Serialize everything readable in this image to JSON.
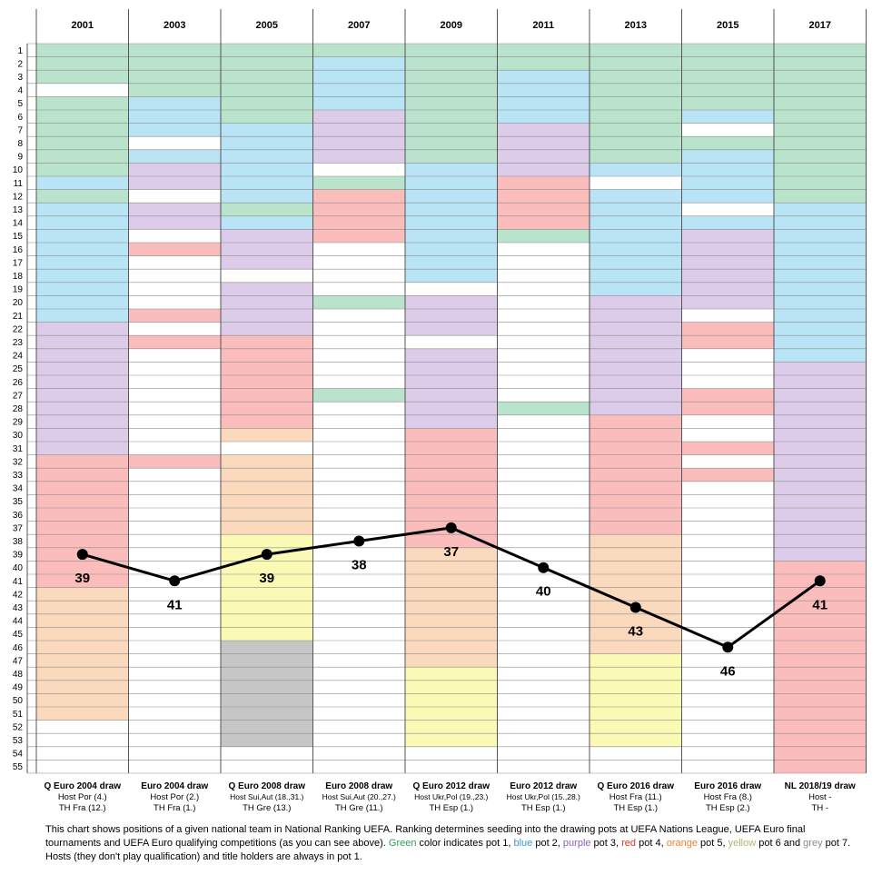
{
  "colors": {
    "pot1": "#b9e4cb",
    "pot2": "#b9e4f6",
    "pot3": "#dccbe9",
    "pot4": "#fbbcbc",
    "pot5": "#fbd9bd",
    "pot6": "#fafab4",
    "pot7": "#c6c6c6",
    "none": "#ffffff",
    "line": "#000000"
  },
  "chart_data": {
    "type": "line",
    "y_axis": {
      "min": 1,
      "max": 55,
      "inverted": true,
      "tick_labels": [
        "1",
        "2",
        "3",
        "4",
        "5",
        "6",
        "7",
        "8",
        "9",
        "10",
        "11",
        "12",
        "13",
        "14",
        "15",
        "16",
        "17",
        "18",
        "19",
        "20",
        "21",
        "22",
        "23",
        "24",
        "25",
        "26",
        "27",
        "28",
        "29",
        "30",
        "31",
        "32",
        "33",
        "34",
        "35",
        "36",
        "37",
        "38",
        "39",
        "40",
        "41",
        "42",
        "43",
        "44",
        "45",
        "46",
        "47",
        "48",
        "49",
        "50",
        "51",
        "52",
        "53",
        "54",
        "55"
      ]
    },
    "grid": true,
    "columns": [
      {
        "year": "2001",
        "event": "Q Euro 2004 draw",
        "host": "Host Por (4.)",
        "holder": "TH Fra (12.)",
        "value": 39,
        "value_label": "39",
        "pots": [
          [
            1,
            3,
            "pot1"
          ],
          [
            4,
            4,
            "none"
          ],
          [
            5,
            10,
            "pot1"
          ],
          [
            11,
            11,
            "pot2"
          ],
          [
            12,
            12,
            "pot1"
          ],
          [
            13,
            21,
            "pot2"
          ],
          [
            22,
            31,
            "pot3"
          ],
          [
            32,
            41,
            "pot4"
          ],
          [
            42,
            51,
            "pot5"
          ],
          [
            52,
            55,
            "none"
          ]
        ]
      },
      {
        "year": "2003",
        "event": "Euro 2004 draw",
        "host": "Host Por (2.)",
        "holder": "TH Fra (1.)",
        "value": 41,
        "value_label": "41",
        "pots": [
          [
            1,
            4,
            "pot1"
          ],
          [
            5,
            7,
            "pot2"
          ],
          [
            8,
            8,
            "none"
          ],
          [
            9,
            9,
            "pot2"
          ],
          [
            10,
            11,
            "pot3"
          ],
          [
            12,
            12,
            "none"
          ],
          [
            13,
            14,
            "pot3"
          ],
          [
            15,
            15,
            "none"
          ],
          [
            16,
            16,
            "pot4"
          ],
          [
            17,
            20,
            "none"
          ],
          [
            21,
            21,
            "pot4"
          ],
          [
            22,
            22,
            "none"
          ],
          [
            23,
            23,
            "pot4"
          ],
          [
            24,
            31,
            "none"
          ],
          [
            32,
            32,
            "pot4"
          ],
          [
            33,
            55,
            "none"
          ]
        ]
      },
      {
        "year": "2005",
        "event": "Q Euro 2008 draw",
        "host": "Host Sui,Aut (18.,31.)",
        "holder": "TH Gre (13.)",
        "value": 39,
        "value_label": "39",
        "pots": [
          [
            1,
            6,
            "pot1"
          ],
          [
            7,
            12,
            "pot2"
          ],
          [
            13,
            13,
            "pot1"
          ],
          [
            14,
            14,
            "pot2"
          ],
          [
            15,
            17,
            "pot3"
          ],
          [
            18,
            18,
            "none"
          ],
          [
            19,
            22,
            "pot3"
          ],
          [
            23,
            29,
            "pot4"
          ],
          [
            30,
            30,
            "pot5"
          ],
          [
            31,
            31,
            "none"
          ],
          [
            32,
            37,
            "pot5"
          ],
          [
            38,
            45,
            "pot6"
          ],
          [
            46,
            53,
            "pot7"
          ],
          [
            54,
            55,
            "none"
          ]
        ]
      },
      {
        "year": "2007",
        "event": "Euro 2008 draw",
        "host": "Host Sui,Aut (20.,27.)",
        "holder": "TH Gre (11.)",
        "value": 38,
        "value_label": "38",
        "pots": [
          [
            1,
            1,
            "pot1"
          ],
          [
            2,
            5,
            "pot2"
          ],
          [
            6,
            9,
            "pot3"
          ],
          [
            10,
            10,
            "none"
          ],
          [
            11,
            11,
            "pot1"
          ],
          [
            12,
            15,
            "pot4"
          ],
          [
            16,
            19,
            "none"
          ],
          [
            20,
            20,
            "pot1"
          ],
          [
            21,
            26,
            "none"
          ],
          [
            27,
            27,
            "pot1"
          ],
          [
            28,
            55,
            "none"
          ]
        ]
      },
      {
        "year": "2009",
        "event": "Q Euro 2012 draw",
        "host": "Host Ukr,Pol (19.,23.)",
        "holder": "TH Esp (1.)",
        "value": 37,
        "value_label": "37",
        "pots": [
          [
            1,
            9,
            "pot1"
          ],
          [
            10,
            18,
            "pot2"
          ],
          [
            19,
            19,
            "none"
          ],
          [
            20,
            22,
            "pot3"
          ],
          [
            23,
            23,
            "none"
          ],
          [
            24,
            29,
            "pot3"
          ],
          [
            30,
            38,
            "pot4"
          ],
          [
            39,
            47,
            "pot5"
          ],
          [
            48,
            53,
            "pot6"
          ],
          [
            54,
            55,
            "none"
          ]
        ]
      },
      {
        "year": "2011",
        "event": "Euro 2012 draw",
        "host": "Host Ukr,Pol (15.,28.)",
        "holder": "TH Esp (1.)",
        "value": 40,
        "value_label": "40",
        "pots": [
          [
            1,
            2,
            "pot1"
          ],
          [
            3,
            6,
            "pot2"
          ],
          [
            7,
            10,
            "pot3"
          ],
          [
            11,
            14,
            "pot4"
          ],
          [
            15,
            15,
            "pot1"
          ],
          [
            16,
            27,
            "none"
          ],
          [
            28,
            28,
            "pot1"
          ],
          [
            29,
            55,
            "none"
          ]
        ]
      },
      {
        "year": "2013",
        "event": "Q Euro 2016 draw",
        "host": "Host Fra (11.)",
        "holder": "TH Esp (1.)",
        "value": 43,
        "value_label": "43",
        "pots": [
          [
            1,
            9,
            "pot1"
          ],
          [
            10,
            10,
            "pot2"
          ],
          [
            11,
            11,
            "none"
          ],
          [
            12,
            19,
            "pot2"
          ],
          [
            20,
            28,
            "pot3"
          ],
          [
            29,
            37,
            "pot4"
          ],
          [
            38,
            46,
            "pot5"
          ],
          [
            47,
            53,
            "pot6"
          ],
          [
            54,
            55,
            "none"
          ]
        ]
      },
      {
        "year": "2015",
        "event": "Euro 2016 draw",
        "host": "Host Fra (8.)",
        "holder": "TH Esp (2.)",
        "value": 46,
        "value_label": "46",
        "pots": [
          [
            1,
            5,
            "pot1"
          ],
          [
            6,
            6,
            "pot2"
          ],
          [
            7,
            7,
            "none"
          ],
          [
            8,
            8,
            "pot1"
          ],
          [
            9,
            12,
            "pot2"
          ],
          [
            13,
            13,
            "none"
          ],
          [
            14,
            14,
            "pot2"
          ],
          [
            15,
            20,
            "pot3"
          ],
          [
            21,
            21,
            "none"
          ],
          [
            22,
            23,
            "pot4"
          ],
          [
            24,
            26,
            "none"
          ],
          [
            27,
            28,
            "pot4"
          ],
          [
            29,
            30,
            "none"
          ],
          [
            31,
            31,
            "pot4"
          ],
          [
            32,
            32,
            "none"
          ],
          [
            33,
            33,
            "pot4"
          ],
          [
            34,
            55,
            "none"
          ]
        ]
      },
      {
        "year": "2017",
        "event": "NL 2018/19 draw",
        "host": "Host -",
        "holder": "TH -",
        "value": 41,
        "value_label": "41",
        "pots": [
          [
            1,
            12,
            "pot1"
          ],
          [
            13,
            24,
            "pot2"
          ],
          [
            25,
            39,
            "pot3"
          ],
          [
            40,
            55,
            "pot4"
          ]
        ]
      }
    ]
  },
  "description": {
    "part1": "This chart shows positions of a given national team in National Ranking UEFA. Ranking determines seeding into the drawing pots at UEFA Nations League, UEFA Euro final tournaments and UEFA Euro qualifying competitions (as you can see above). ",
    "green": "Green",
    "part2": " color indicates pot 1, ",
    "blue": "blue",
    "part3": " pot 2, ",
    "purple": "purple",
    "part4": " pot 3, ",
    "red": "red",
    "part5": " pot 4, ",
    "orange": "orange",
    "part6": " pot 5, ",
    "yellow": "yellow",
    "part7": " pot 6 and ",
    "grey": "grey",
    "part8": " pot 7. Hosts (they don't play qualification) and title holders are always in pot 1."
  }
}
